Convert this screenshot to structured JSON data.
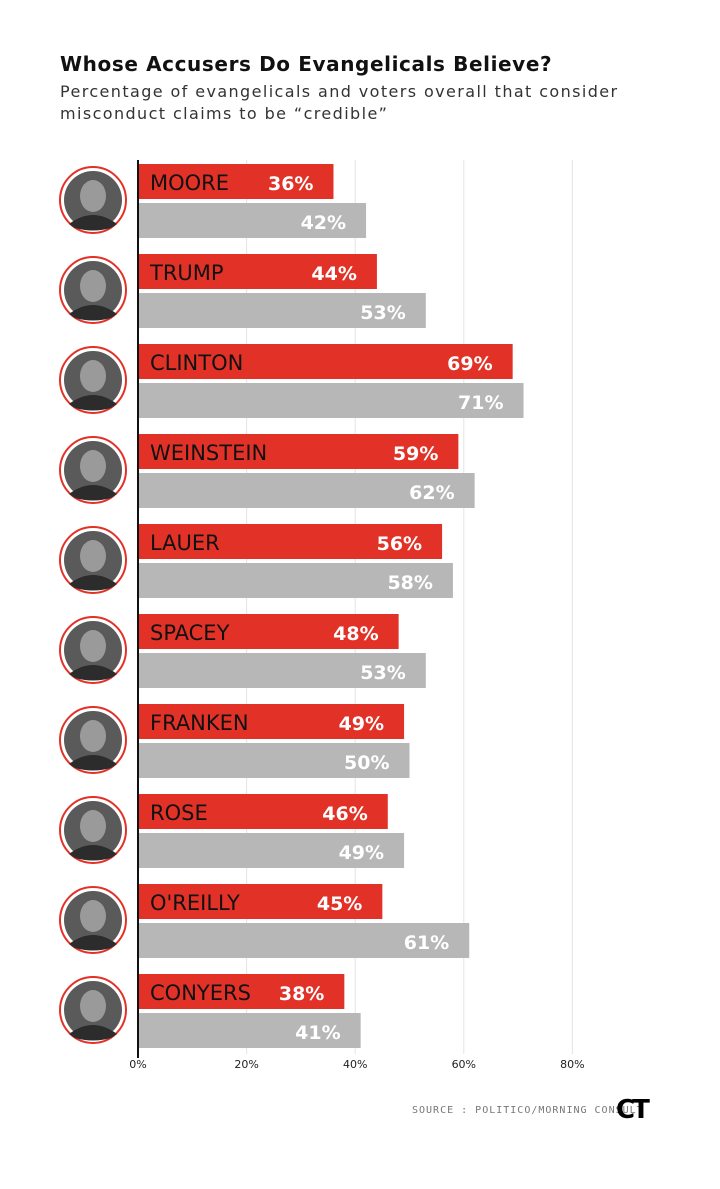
{
  "header": {
    "title": "Whose Accusers Do Evangelicals Believe?",
    "subtitle": "Percentage of evangelicals and voters overall that consider misconduct claims to be “credible”"
  },
  "footer": {
    "source": "SOURCE : POLITICO/MORNING CONSULT",
    "logo": "CT"
  },
  "colors": {
    "evangelicals": "#e23228",
    "overall": "#b7b7b7",
    "grid": "#e4e4e4",
    "axis": "#111111",
    "avatar_ring": "#e23228"
  },
  "chart_data": {
    "type": "bar",
    "orientation": "horizontal",
    "categories": [
      "MOORE",
      "TRUMP",
      "CLINTON",
      "WEINSTEIN",
      "LAUER",
      "SPACEY",
      "FRANKEN",
      "ROSE",
      "O'REILLY",
      "CONYERS"
    ],
    "series": [
      {
        "values": [
          36,
          44,
          69,
          59,
          56,
          48,
          49,
          46,
          45,
          38
        ]
      },
      {
        "values": [
          42,
          53,
          71,
          62,
          58,
          53,
          50,
          49,
          61,
          41
        ]
      }
    ],
    "xlim": [
      0,
      80
    ],
    "xticks": [
      "0%",
      "20%",
      "40%",
      "60%",
      "80%"
    ],
    "value_suffix": "%",
    "grid": true,
    "avatars": "photo-circle"
  }
}
